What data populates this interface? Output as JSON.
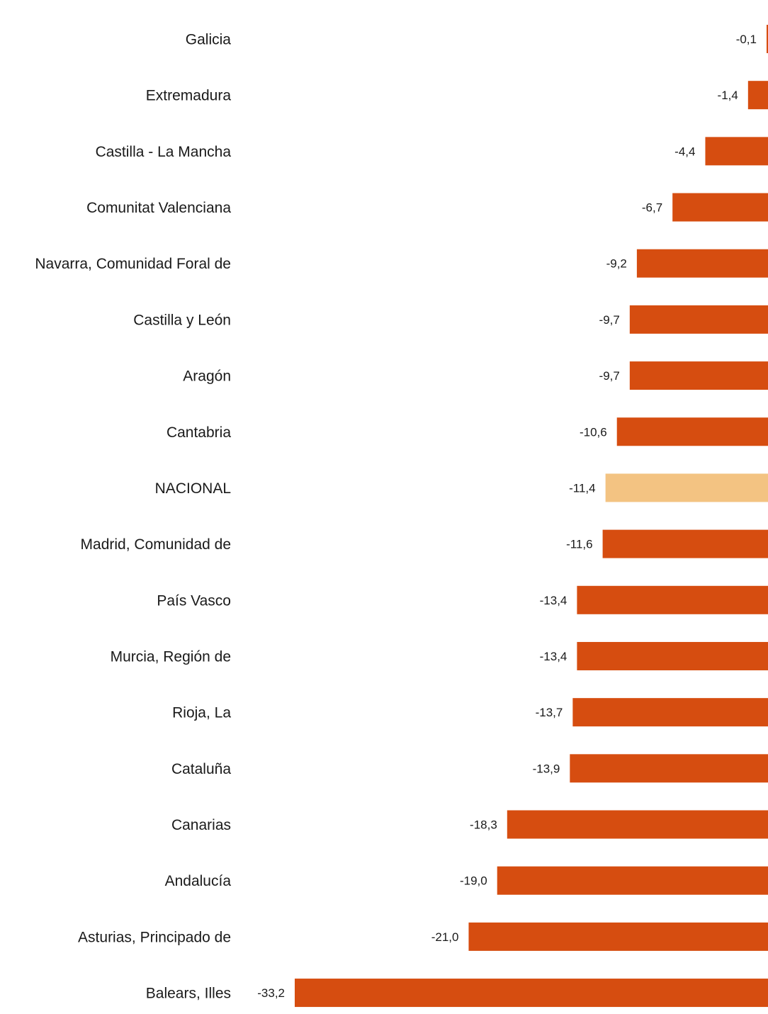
{
  "chart_data": {
    "type": "bar",
    "orientation": "horizontal",
    "categories": [
      "Galicia",
      "Extremadura",
      "Castilla - La Mancha",
      "Comunitat Valenciana",
      "Navarra, Comunidad Foral de",
      "Castilla y León",
      "Aragón",
      "Cantabria",
      "NACIONAL",
      "Madrid, Comunidad de",
      "País Vasco",
      "Murcia, Región de",
      "Rioja, La",
      "Cataluña",
      "Canarias",
      "Andalucía",
      "Asturias, Principado de",
      "Balears, Illes"
    ],
    "values": [
      -0.1,
      -1.4,
      -4.4,
      -6.7,
      -9.2,
      -9.7,
      -9.7,
      -10.6,
      -11.4,
      -11.6,
      -13.4,
      -13.4,
      -13.7,
      -13.9,
      -18.3,
      -19.0,
      -21.0,
      -33.2
    ],
    "value_labels": [
      "-0,1",
      "-1,4",
      "-4,4",
      "-6,7",
      "-9,2",
      "-9,7",
      "-9,7",
      "-10,6",
      "-11,4",
      "-11,6",
      "-13,4",
      "-13,4",
      "-13,7",
      "-13,9",
      "-18,3",
      "-19,0",
      "-21,0",
      "-33,2"
    ],
    "highlight": "NACIONAL",
    "colors": {
      "bar": "#d64d10",
      "highlight": "#f3c382",
      "text": "#1a1a1a"
    },
    "xlim": [
      -33.2,
      0
    ],
    "title": "",
    "xlabel": "",
    "ylabel": "",
    "grid": false,
    "legend": "none"
  }
}
